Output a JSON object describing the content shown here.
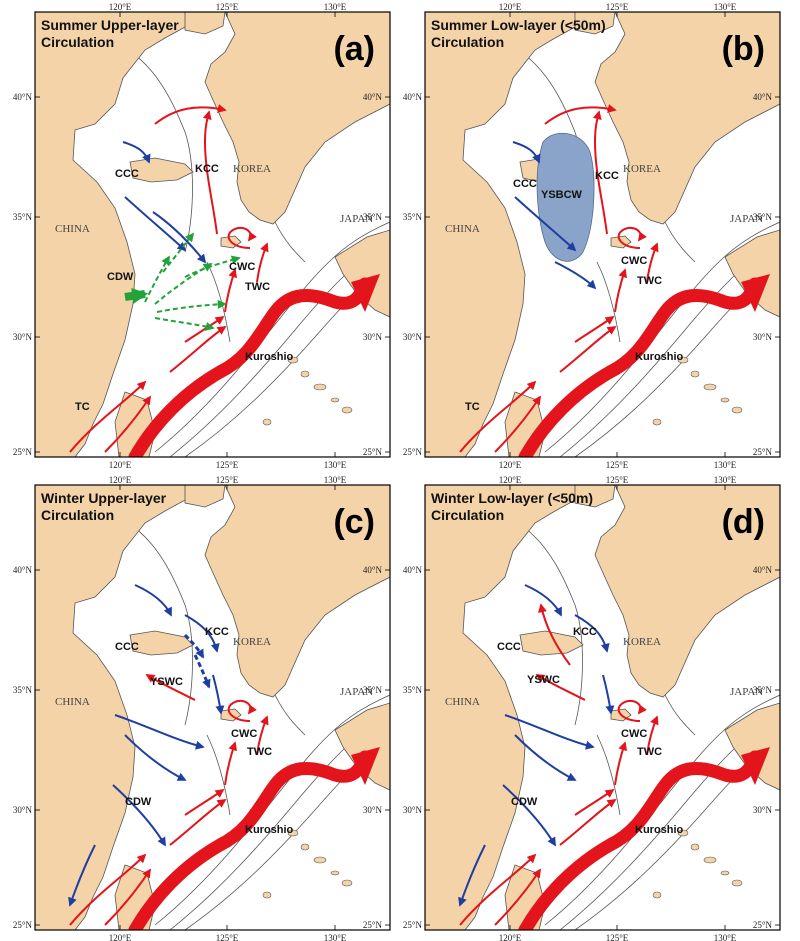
{
  "panels": [
    {
      "id": "a",
      "title_lines": [
        "Summer Upper-layer",
        "Circulation"
      ],
      "letter": "(a)",
      "labels": {
        "CCC": "CCC",
        "KCC": "KCC",
        "CDW": "CDW",
        "CWC": "CWC",
        "TWC": "TWC",
        "Kuroshio": "Kuroshio",
        "TC": "TC"
      },
      "green_arrows": true,
      "water_mass": null
    },
    {
      "id": "b",
      "title_lines": [
        "Summer Low-layer (<50m)",
        "Circulation"
      ],
      "letter": "(b)",
      "labels": {
        "CCC": "CCC",
        "KCC": "KCC",
        "CWC": "CWC",
        "TWC": "TWC",
        "Kuroshio": "Kuroshio",
        "TC": "TC",
        "YSBCW": "YSBCW"
      },
      "green_arrows": false,
      "water_mass": "YSBCW"
    },
    {
      "id": "c",
      "title_lines": [
        "Winter Upper-layer",
        "Circulation"
      ],
      "letter": "(c)",
      "labels": {
        "CCC": "CCC",
        "KCC": "KCC",
        "YSWC": "YSWC",
        "CWC": "CWC",
        "TWC": "TWC",
        "CDW": "CDW",
        "Kuroshio": "Kuroshio"
      },
      "green_arrows": false,
      "water_mass": null
    },
    {
      "id": "d",
      "title_lines": [
        "Winter Low-layer (<50m)",
        "Circulation"
      ],
      "letter": "(d)",
      "labels": {
        "CCC": "CCC",
        "KCC": "KCC",
        "YSWC": "YSWC",
        "CWC": "CWC",
        "TWC": "TWC",
        "CDW": "CDW",
        "Kuroshio": "Kuroshio"
      },
      "green_arrows": false,
      "water_mass": null
    }
  ],
  "countries": {
    "china": "CHINA",
    "korea": "KOREA",
    "japan": "JAPAN"
  },
  "lon_ticks": [
    "120°E",
    "125°E",
    "130°E"
  ],
  "lat_ticks": [
    "40°N",
    "35°N",
    "30°N",
    "25°N"
  ],
  "colors": {
    "land": "#f4d3a8",
    "sea": "#ffffff",
    "warm_current": "#e3141b",
    "cold_current": "#1f3fa0",
    "freshwater": "#22a33a",
    "cold_water_mass": "#8aa3c8",
    "coast": "#555555"
  }
}
